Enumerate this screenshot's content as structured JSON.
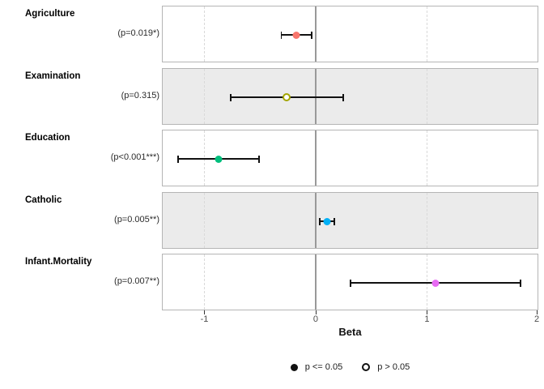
{
  "rows": [
    {
      "label": "Agriculture",
      "pvalue": "(p=0.019*)",
      "beta": -0.172,
      "ci_low": -0.314,
      "ci_high": -0.03,
      "significant": true,
      "color": "#F8766D",
      "bg": "white"
    },
    {
      "label": "Examination",
      "pvalue": "(p=0.315)",
      "beta": -0.258,
      "ci_low": -0.771,
      "ci_high": 0.255,
      "significant": false,
      "color": "#A3A500",
      "bg": "gray"
    },
    {
      "label": "Education",
      "pvalue": "(p<0.001***)",
      "beta": -0.871,
      "ci_low": -1.241,
      "ci_high": -0.501,
      "significant": true,
      "color": "#00BF7D",
      "bg": "white"
    },
    {
      "label": "Catholic",
      "pvalue": "(p=0.005**)",
      "beta": 0.104,
      "ci_low": 0.033,
      "ci_high": 0.175,
      "significant": true,
      "color": "#00B0F6",
      "bg": "gray"
    },
    {
      "label": "Infant.Mortality",
      "pvalue": "(p=0.007**)",
      "beta": 1.077,
      "ci_low": 0.306,
      "ci_high": 1.848,
      "significant": true,
      "color": "#E76BF3",
      "bg": "white"
    }
  ],
  "axis": {
    "label": "Beta",
    "tick_values": [
      -1,
      0,
      1,
      2
    ],
    "tick_labels": [
      "-1",
      "0",
      "1",
      "2"
    ],
    "range": [
      -1.3745,
      1.9935
    ],
    "zero_line": 0,
    "dashed_gridlines": [
      -1,
      1
    ]
  },
  "legend": {
    "items": [
      {
        "marker": "filled",
        "label": "p <= 0.05"
      },
      {
        "marker": "open",
        "label": "p > 0.05"
      }
    ]
  },
  "colors": {
    "panel_gray": "#ebebeb",
    "panel_border": "#b5b5b5",
    "zero_line": "#999999",
    "gridline": "#d9d9d9",
    "errorbar": "#111111"
  },
  "chart_data": {
    "type": "scatter",
    "subtype": "forest-plot",
    "title": "",
    "xlabel": "Beta",
    "ylabel": "",
    "xlim": [
      -1.38,
      2.0
    ],
    "x_ticks": [
      -1,
      0,
      1,
      2
    ],
    "zero_reference_line": 0,
    "grid": "dashed vertical at -1 and 1, solid gray at 0",
    "legend_position": "bottom",
    "legend_entries": [
      "p <= 0.05 (filled dot)",
      "p > 0.05 (open dot)"
    ],
    "series": [
      {
        "name": "Agriculture",
        "p_text": "(p=0.019*)",
        "estimate": -0.172,
        "ci": [
          -0.314,
          -0.03
        ],
        "significant": true,
        "color": "#F8766D"
      },
      {
        "name": "Examination",
        "p_text": "(p=0.315)",
        "estimate": -0.258,
        "ci": [
          -0.771,
          0.255
        ],
        "significant": false,
        "color": "#A3A500"
      },
      {
        "name": "Education",
        "p_text": "(p<0.001***)",
        "estimate": -0.871,
        "ci": [
          -1.241,
          -0.501
        ],
        "significant": true,
        "color": "#00BF7D"
      },
      {
        "name": "Catholic",
        "p_text": "(p=0.005**)",
        "estimate": 0.104,
        "ci": [
          0.033,
          0.175
        ],
        "significant": true,
        "color": "#00B0F6"
      },
      {
        "name": "Infant.Mortality",
        "p_text": "(p=0.007**)",
        "estimate": 1.077,
        "ci": [
          0.306,
          1.848
        ],
        "significant": true,
        "color": "#E76BF3"
      }
    ]
  }
}
